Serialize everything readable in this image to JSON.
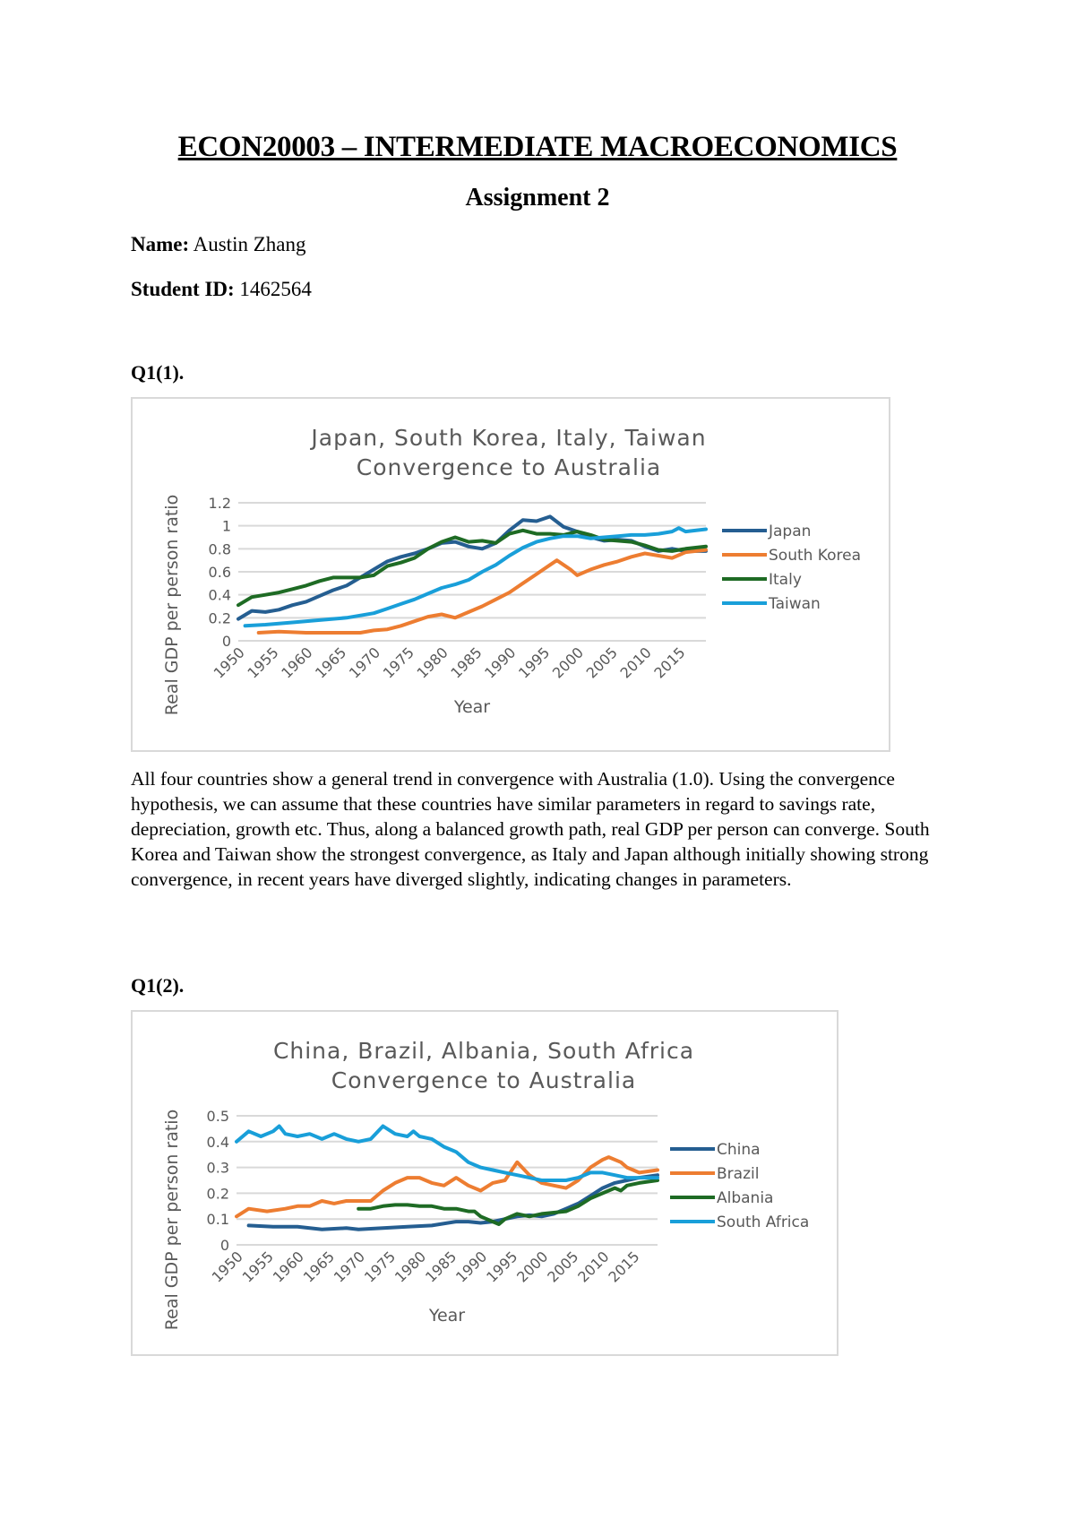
{
  "header": {
    "title": "ECON20003 – INTERMEDIATE MACROECONOMICS",
    "subtitle": "Assignment 2",
    "name_label": "Name:",
    "name_value": "Austin Zhang",
    "id_label": "Student ID:",
    "id_value": "1462564"
  },
  "q1": {
    "label": "Q1(1).",
    "paragraph": "All four countries show a general trend in convergence with Australia (1.0). Using the convergence hypothesis, we can assume that these countries have similar parameters in regard to savings rate, depreciation, growth etc. Thus, along a balanced growth path, real GDP per person can converge. South Korea and Taiwan show the strongest convergence, as Italy and Japan although initially showing strong convergence, in recent years have diverged slightly, indicating changes in parameters."
  },
  "q2": {
    "label": "Q1(2)."
  },
  "chart_data": [
    {
      "type": "line",
      "title": [
        "Japan, South Korea, Italy, Taiwan",
        "Convergence to Australia"
      ],
      "xlabel": "Year",
      "ylabel": "Real GDP per person ratio",
      "ylim": [
        0,
        1.2
      ],
      "yticks": [
        "0",
        "0.2",
        "0.4",
        "0.6",
        "0.8",
        "1",
        "1.2"
      ],
      "xticks": [
        "1950",
        "1955",
        "1960",
        "1965",
        "1970",
        "1975",
        "1980",
        "1985",
        "1990",
        "1995",
        "2000",
        "2005",
        "2010",
        "2015"
      ],
      "xrange": [
        1950,
        2019
      ],
      "grid": true,
      "legend_position": "right",
      "series": [
        {
          "name": "Japan",
          "color": "#255e91",
          "x": [
            1950,
            1952,
            1954,
            1956,
            1958,
            1960,
            1962,
            1964,
            1966,
            1968,
            1970,
            1972,
            1974,
            1976,
            1978,
            1980,
            1982,
            1984,
            1986,
            1988,
            1990,
            1992,
            1994,
            1996,
            1998,
            2000,
            2002,
            2004,
            2006,
            2008,
            2010,
            2012,
            2014,
            2016,
            2019
          ],
          "y": [
            0.19,
            0.26,
            0.25,
            0.27,
            0.31,
            0.34,
            0.39,
            0.44,
            0.48,
            0.55,
            0.62,
            0.69,
            0.73,
            0.76,
            0.8,
            0.85,
            0.86,
            0.82,
            0.8,
            0.85,
            0.96,
            1.05,
            1.04,
            1.08,
            0.99,
            0.95,
            0.9,
            0.87,
            0.88,
            0.87,
            0.82,
            0.78,
            0.8,
            0.78,
            0.78
          ]
        },
        {
          "name": "South Korea",
          "color": "#ed7d31",
          "x": [
            1953,
            1956,
            1960,
            1964,
            1968,
            1970,
            1972,
            1974,
            1976,
            1978,
            1980,
            1982,
            1984,
            1986,
            1988,
            1990,
            1992,
            1994,
            1996,
            1997,
            1999,
            2000,
            2002,
            2004,
            2006,
            2008,
            2010,
            2012,
            2014,
            2016,
            2019
          ],
          "y": [
            0.07,
            0.08,
            0.07,
            0.07,
            0.07,
            0.09,
            0.1,
            0.13,
            0.17,
            0.21,
            0.23,
            0.2,
            0.25,
            0.3,
            0.36,
            0.42,
            0.5,
            0.58,
            0.66,
            0.7,
            0.62,
            0.57,
            0.62,
            0.66,
            0.69,
            0.73,
            0.76,
            0.74,
            0.72,
            0.77,
            0.79
          ]
        },
        {
          "name": "Italy",
          "color": "#1e6b24",
          "x": [
            1950,
            1952,
            1954,
            1956,
            1958,
            1960,
            1962,
            1964,
            1966,
            1968,
            1970,
            1972,
            1974,
            1976,
            1978,
            1980,
            1982,
            1984,
            1986,
            1988,
            1990,
            1992,
            1994,
            1996,
            1998,
            2000,
            2002,
            2004,
            2006,
            2008,
            2010,
            2012,
            2014,
            2016,
            2019
          ],
          "y": [
            0.31,
            0.38,
            0.4,
            0.42,
            0.45,
            0.48,
            0.52,
            0.55,
            0.55,
            0.55,
            0.57,
            0.65,
            0.68,
            0.72,
            0.8,
            0.86,
            0.9,
            0.86,
            0.87,
            0.85,
            0.93,
            0.96,
            0.93,
            0.93,
            0.92,
            0.95,
            0.92,
            0.88,
            0.87,
            0.86,
            0.83,
            0.79,
            0.78,
            0.8,
            0.82
          ]
        },
        {
          "name": "Taiwan",
          "color": "#199fd9",
          "x": [
            1951,
            1954,
            1958,
            1962,
            1966,
            1970,
            1972,
            1974,
            1976,
            1978,
            1980,
            1982,
            1984,
            1986,
            1988,
            1990,
            1992,
            1994,
            1996,
            1998,
            2000,
            2002,
            2004,
            2006,
            2008,
            2010,
            2012,
            2014,
            2015,
            2016,
            2019
          ],
          "y": [
            0.13,
            0.14,
            0.16,
            0.18,
            0.2,
            0.24,
            0.28,
            0.32,
            0.36,
            0.41,
            0.46,
            0.49,
            0.53,
            0.6,
            0.66,
            0.74,
            0.81,
            0.86,
            0.89,
            0.91,
            0.91,
            0.89,
            0.9,
            0.91,
            0.92,
            0.92,
            0.93,
            0.95,
            0.98,
            0.95,
            0.97
          ]
        }
      ]
    },
    {
      "type": "line",
      "title": [
        "China, Brazil, Albania, South Africa",
        "Convergence to Australia"
      ],
      "xlabel": "Year",
      "ylabel": "Real GDP per person ratio",
      "ylim": [
        0,
        0.5
      ],
      "yticks": [
        "0",
        "0.1",
        "0.2",
        "0.3",
        "0.4",
        "0.5"
      ],
      "xticks": [
        "1950",
        "1955",
        "1960",
        "1965",
        "1970",
        "1975",
        "1980",
        "1985",
        "1990",
        "1995",
        "2000",
        "2005",
        "2010",
        "2015"
      ],
      "xrange": [
        1950,
        2019
      ],
      "grid": true,
      "legend_position": "right",
      "series": [
        {
          "name": "China",
          "color": "#255e91",
          "x": [
            1952,
            1956,
            1960,
            1964,
            1968,
            1970,
            1974,
            1978,
            1982,
            1986,
            1988,
            1990,
            1992,
            1994,
            1996,
            1998,
            2000,
            2002,
            2004,
            2006,
            2008,
            2010,
            2012,
            2014,
            2016,
            2019
          ],
          "y": [
            0.075,
            0.07,
            0.07,
            0.06,
            0.065,
            0.06,
            0.065,
            0.07,
            0.075,
            0.09,
            0.09,
            0.085,
            0.09,
            0.1,
            0.11,
            0.115,
            0.11,
            0.12,
            0.14,
            0.16,
            0.19,
            0.22,
            0.24,
            0.25,
            0.26,
            0.27
          ]
        },
        {
          "name": "Brazil",
          "color": "#ed7d31",
          "x": [
            1950,
            1952,
            1955,
            1958,
            1960,
            1962,
            1964,
            1966,
            1968,
            1970,
            1972,
            1974,
            1976,
            1978,
            1980,
            1982,
            1984,
            1986,
            1988,
            1990,
            1992,
            1994,
            1996,
            1998,
            2000,
            2002,
            2004,
            2006,
            2008,
            2010,
            2011,
            2013,
            2014,
            2016,
            2019
          ],
          "y": [
            0.11,
            0.14,
            0.13,
            0.14,
            0.15,
            0.15,
            0.17,
            0.16,
            0.17,
            0.17,
            0.17,
            0.21,
            0.24,
            0.26,
            0.26,
            0.24,
            0.23,
            0.26,
            0.23,
            0.21,
            0.24,
            0.25,
            0.32,
            0.27,
            0.24,
            0.23,
            0.22,
            0.25,
            0.3,
            0.33,
            0.34,
            0.32,
            0.3,
            0.28,
            0.29
          ]
        },
        {
          "name": "Albania",
          "color": "#1e6b24",
          "x": [
            1970,
            1972,
            1974,
            1976,
            1978,
            1980,
            1982,
            1984,
            1986,
            1988,
            1989,
            1990,
            1992,
            1993,
            1994,
            1996,
            1998,
            2000,
            2002,
            2004,
            2006,
            2008,
            2010,
            2012,
            2013,
            2014,
            2016,
            2019
          ],
          "y": [
            0.14,
            0.14,
            0.15,
            0.155,
            0.155,
            0.15,
            0.15,
            0.14,
            0.14,
            0.13,
            0.13,
            0.11,
            0.09,
            0.08,
            0.1,
            0.12,
            0.11,
            0.12,
            0.125,
            0.13,
            0.15,
            0.18,
            0.2,
            0.22,
            0.21,
            0.23,
            0.24,
            0.25
          ]
        },
        {
          "name": "South Africa",
          "color": "#199fd9",
          "x": [
            1950,
            1952,
            1954,
            1956,
            1957,
            1958,
            1960,
            1962,
            1964,
            1966,
            1968,
            1970,
            1972,
            1974,
            1976,
            1978,
            1979,
            1980,
            1982,
            1984,
            1986,
            1988,
            1990,
            1992,
            1994,
            1996,
            1998,
            2000,
            2002,
            2004,
            2006,
            2008,
            2010,
            2012,
            2014,
            2016,
            2019
          ],
          "y": [
            0.4,
            0.44,
            0.42,
            0.44,
            0.46,
            0.43,
            0.42,
            0.43,
            0.41,
            0.43,
            0.41,
            0.4,
            0.41,
            0.46,
            0.43,
            0.42,
            0.44,
            0.42,
            0.41,
            0.38,
            0.36,
            0.32,
            0.3,
            0.29,
            0.28,
            0.27,
            0.26,
            0.25,
            0.25,
            0.25,
            0.26,
            0.28,
            0.28,
            0.27,
            0.26,
            0.26,
            0.26
          ]
        }
      ]
    }
  ]
}
